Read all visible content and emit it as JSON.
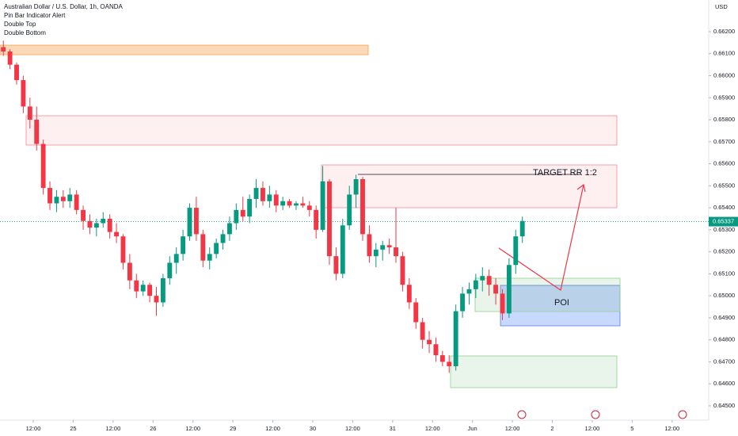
{
  "chart_data": {
    "type": "candlestick",
    "title": "Australian Dollar / U.S. Dollar, 1h, OANDA",
    "indicators": [
      "Pin Bar Indicator Alert",
      "Double Top",
      "Double Bottom"
    ],
    "currency": "USD",
    "annotations": [
      "TARGET RR 1:2",
      "POI"
    ],
    "up_color": "#089981",
    "down_color": "#f23645",
    "last_price": 0.65337,
    "last_price_color": "#089981",
    "x": [
      1,
      3,
      5,
      7,
      9,
      11,
      13,
      15,
      17,
      19,
      21,
      23,
      25,
      27,
      29,
      31,
      33,
      35,
      37,
      39,
      41,
      43,
      45,
      47,
      49,
      51,
      53,
      55,
      57,
      59,
      61,
      63,
      65,
      67,
      69,
      71,
      73,
      75,
      77,
      79,
      81,
      83,
      85,
      87,
      89,
      91,
      93,
      95,
      97,
      99,
      101,
      103,
      105,
      107,
      109,
      111,
      113,
      115,
      117,
      119,
      121,
      123,
      125,
      127,
      129,
      131,
      133,
      135,
      137,
      139,
      141,
      143,
      145,
      147,
      149,
      151,
      153,
      155,
      157
    ],
    "open": [
      0.6613,
      0.6611,
      0.6605,
      0.6598,
      0.6586,
      0.658,
      0.6569,
      0.6549,
      0.6542,
      0.6545,
      0.6543,
      0.6546,
      0.6539,
      0.6534,
      0.6531,
      0.6533,
      0.6535,
      0.6529,
      0.6527,
      0.6515,
      0.6507,
      0.6502,
      0.6505,
      0.65,
      0.6497,
      0.6508,
      0.6515,
      0.6519,
      0.6527,
      0.654,
      0.6528,
      0.6516,
      0.6519,
      0.6524,
      0.6528,
      0.6533,
      0.6539,
      0.6536,
      0.6544,
      0.6549,
      0.6543,
      0.6546,
      0.6541,
      0.6543,
      0.6541,
      0.6542,
      0.6541,
      0.6539,
      0.653,
      0.6552,
      0.6518,
      0.651,
      0.6532,
      0.6546,
      0.6553,
      0.6528,
      0.6518,
      0.6521,
      0.6523,
      0.6522,
      0.6518,
      0.6505,
      0.6497,
      0.6488,
      0.648,
      0.6478,
      0.6473,
      0.647,
      0.6468,
      0.6493,
      0.6501,
      0.6503,
      0.6507,
      0.6509,
      0.6505,
      0.6501,
      0.6492,
      0.6514,
      0.6527
    ],
    "high": [
      0.6616,
      0.6612,
      0.6606,
      0.66,
      0.659,
      0.6586,
      0.6571,
      0.6552,
      0.6548,
      0.6548,
      0.6549,
      0.6548,
      0.6541,
      0.6537,
      0.6535,
      0.6538,
      0.6537,
      0.6533,
      0.6528,
      0.6519,
      0.651,
      0.6507,
      0.6506,
      0.6504,
      0.651,
      0.6518,
      0.6522,
      0.653,
      0.6542,
      0.6545,
      0.653,
      0.6522,
      0.6526,
      0.653,
      0.6536,
      0.6542,
      0.6545,
      0.6546,
      0.6553,
      0.6552,
      0.655,
      0.6548,
      0.6545,
      0.6544,
      0.6543,
      0.6545,
      0.6543,
      0.6541,
      0.6559,
      0.6553,
      0.6522,
      0.6535,
      0.655,
      0.6555,
      0.6554,
      0.6532,
      0.6524,
      0.6525,
      0.6526,
      0.654,
      0.652,
      0.6508,
      0.6499,
      0.649,
      0.6484,
      0.6481,
      0.6475,
      0.6473,
      0.6496,
      0.6504,
      0.6506,
      0.651,
      0.6513,
      0.6512,
      0.6508,
      0.6503,
      0.6517,
      0.653,
      0.6536
    ],
    "low": [
      0.6609,
      0.6603,
      0.6596,
      0.6583,
      0.6576,
      0.6566,
      0.6546,
      0.6539,
      0.6538,
      0.654,
      0.654,
      0.6537,
      0.653,
      0.6528,
      0.6527,
      0.6531,
      0.6526,
      0.6524,
      0.6512,
      0.6503,
      0.6499,
      0.65,
      0.6497,
      0.6491,
      0.6495,
      0.6505,
      0.651,
      0.6516,
      0.6525,
      0.6525,
      0.6513,
      0.6512,
      0.6517,
      0.6521,
      0.6525,
      0.653,
      0.6534,
      0.6533,
      0.654,
      0.6541,
      0.654,
      0.6538,
      0.6539,
      0.654,
      0.6539,
      0.654,
      0.6536,
      0.6526,
      0.6529,
      0.6514,
      0.6507,
      0.6508,
      0.653,
      0.654,
      0.6525,
      0.6515,
      0.6513,
      0.6516,
      0.6519,
      0.6515,
      0.6502,
      0.6494,
      0.6485,
      0.6476,
      0.6474,
      0.647,
      0.6468,
      0.6465,
      0.6466,
      0.649,
      0.6496,
      0.6499,
      0.6502,
      0.65,
      0.6496,
      0.6489,
      0.649,
      0.651,
      0.6524
    ],
    "close": [
      0.6611,
      0.6605,
      0.6598,
      0.6586,
      0.658,
      0.6569,
      0.6549,
      0.6542,
      0.6545,
      0.6543,
      0.6546,
      0.6539,
      0.6534,
      0.6531,
      0.6533,
      0.6535,
      0.6529,
      0.6527,
      0.6515,
      0.6507,
      0.6502,
      0.6505,
      0.65,
      0.6497,
      0.6508,
      0.6515,
      0.6519,
      0.6527,
      0.654,
      0.6528,
      0.6516,
      0.6519,
      0.6524,
      0.6528,
      0.6533,
      0.6539,
      0.6536,
      0.6544,
      0.6549,
      0.6543,
      0.6546,
      0.6541,
      0.6543,
      0.6541,
      0.6542,
      0.6541,
      0.6539,
      0.653,
      0.6552,
      0.6518,
      0.651,
      0.6532,
      0.6546,
      0.6553,
      0.6528,
      0.6518,
      0.6521,
      0.6523,
      0.6522,
      0.6518,
      0.6505,
      0.6497,
      0.6488,
      0.648,
      0.6478,
      0.6473,
      0.647,
      0.6468,
      0.6493,
      0.6501,
      0.6503,
      0.6507,
      0.6509,
      0.6505,
      0.6501,
      0.6492,
      0.6514,
      0.6527,
      0.6534
    ],
    "xlim": [
      0,
      213
    ],
    "xticks": [
      {
        "value": 10,
        "label": "12:00"
      },
      {
        "value": 22,
        "label": "25"
      },
      {
        "value": 34,
        "label": "12:00"
      },
      {
        "value": 46,
        "label": "26"
      },
      {
        "value": 58,
        "label": "12:00"
      },
      {
        "value": 70,
        "label": "29"
      },
      {
        "value": 82,
        "label": "12:00"
      },
      {
        "value": 94,
        "label": "30"
      },
      {
        "value": 106,
        "label": "12:00"
      },
      {
        "value": 118,
        "label": "31"
      },
      {
        "value": 130,
        "label": "12:00"
      },
      {
        "value": 142,
        "label": "Jun"
      },
      {
        "value": 154,
        "label": "12:00"
      },
      {
        "value": 166,
        "label": "2"
      },
      {
        "value": 178,
        "label": "12:00"
      },
      {
        "value": 190,
        "label": "5"
      },
      {
        "value": 202,
        "label": "12:00"
      }
    ],
    "ylim": [
      0.64435,
      0.66344
    ],
    "yticks": [
      {
        "value": 0.662,
        "label": "0.66200"
      },
      {
        "value": 0.661,
        "label": "0.66100"
      },
      {
        "value": 0.66,
        "label": "0.66000"
      },
      {
        "value": 0.659,
        "label": "0.65900"
      },
      {
        "value": 0.658,
        "label": "0.65800"
      },
      {
        "value": 0.657,
        "label": "0.65700"
      },
      {
        "value": 0.656,
        "label": "0.65600"
      },
      {
        "value": 0.655,
        "label": "0.65500"
      },
      {
        "value": 0.654,
        "label": "0.65400"
      },
      {
        "value": 0.653,
        "label": "0.65300"
      },
      {
        "value": 0.652,
        "label": "0.65200"
      },
      {
        "value": 0.651,
        "label": "0.65100"
      },
      {
        "value": 0.65,
        "label": "0.65000"
      },
      {
        "value": 0.649,
        "label": "0.64900"
      },
      {
        "value": 0.648,
        "label": "0.64800"
      },
      {
        "value": 0.647,
        "label": "0.64700"
      },
      {
        "value": 0.646,
        "label": "0.64600"
      },
      {
        "value": 0.645,
        "label": "0.64500"
      }
    ]
  }
}
